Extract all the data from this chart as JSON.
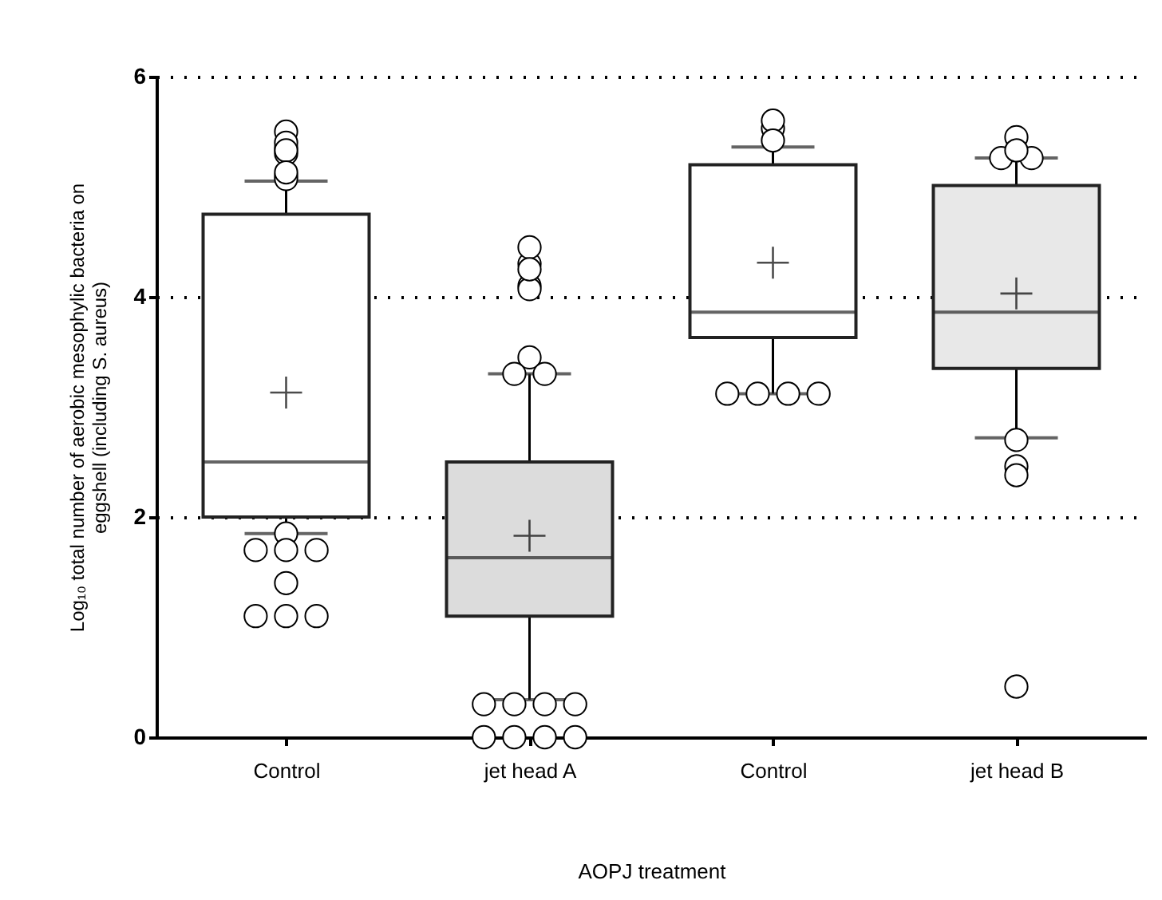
{
  "chart_data": {
    "type": "box",
    "xlabel": "AOPJ treatment",
    "ylabel": "Log₁₀ total number of aerobic mesophylic bacteria on eggshell (including S. aureus)",
    "categories": [
      "Control",
      "jet head A",
      "Control",
      "jet head B"
    ],
    "colors": [
      "#ffffff",
      "#dcdcdc",
      "#ffffff",
      "#e8e8e8"
    ],
    "boxes": [
      {
        "low": 1.85,
        "q1": 2.0,
        "median": 2.5,
        "q3": 4.75,
        "high": 5.05,
        "mean": 3.13,
        "outliers": [
          5.3,
          5.5,
          5.35,
          5.4,
          5.33,
          5.1,
          5.07,
          5.13,
          1.85,
          1.7,
          1.7,
          1.7,
          1.4,
          1.1,
          1.1,
          1.1
        ]
      },
      {
        "low": 0.34,
        "q1": 1.1,
        "median": 1.63,
        "q3": 2.5,
        "high": 3.3,
        "mean": 1.83,
        "outliers": [
          4.3,
          4.45,
          4.1,
          4.07,
          4.25,
          3.45,
          3.3,
          3.3,
          0.3,
          0.3,
          0.3,
          0.3,
          0,
          0,
          0,
          0
        ]
      },
      {
        "low": 3.12,
        "q1": 3.63,
        "median": 3.86,
        "q3": 5.2,
        "high": 5.36,
        "mean": 4.31,
        "outliers": [
          5.53,
          5.6,
          5.42,
          3.12,
          3.12,
          3.12,
          3.12
        ]
      },
      {
        "low": 2.72,
        "q1": 3.35,
        "median": 3.86,
        "q3": 5.01,
        "high": 5.26,
        "mean": 4.03,
        "outliers": [
          5.45,
          5.26,
          5.26,
          5.33,
          2.7,
          2.46,
          2.38,
          0.46
        ]
      }
    ],
    "ylim": [
      0,
      6
    ],
    "yticks": [
      0,
      2,
      4,
      6
    ],
    "grid": "y",
    "line_style": "dotted"
  }
}
